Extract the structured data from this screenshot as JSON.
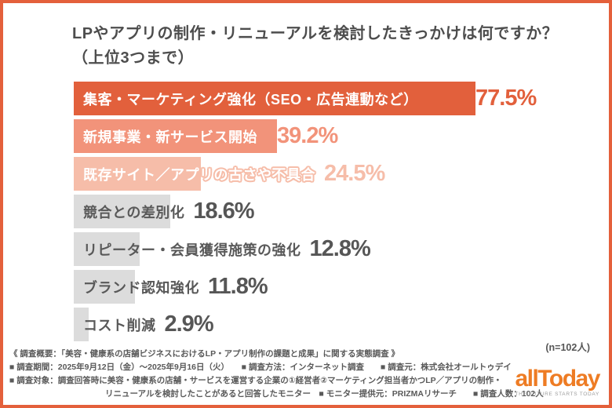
{
  "frame": {
    "border_color": "#E4603B",
    "background": "#FFFFFF"
  },
  "title": {
    "line1": "LPやアプリの制作・リニューアルを検討したきっかけは何ですか？",
    "line2": "（上位3つまで）",
    "color": "#4D4D4D"
  },
  "chart_data": {
    "type": "bar",
    "orientation": "horizontal",
    "title": "LPやアプリの制作・リニューアルを検討したきっかけは何ですか？（上位3つまで）",
    "categories": [
      "集客・マーケティング強化（SEO・広告連動など）",
      "新規事業・新サービス開始",
      "既存サイト／アプリの古さや不具合",
      "競合との差別化",
      "リピーター・会員獲得施策の強化",
      "ブランド認知強化",
      "コスト削減"
    ],
    "values": [
      77.5,
      39.2,
      24.5,
      18.6,
      12.8,
      11.8,
      2.9
    ],
    "value_labels": [
      "77.5%",
      "39.2%",
      "24.5%",
      "18.6%",
      "12.8%",
      "11.8%",
      "2.9%"
    ],
    "bar_colors": [
      "#E2603C",
      "#F2937A",
      "#F6BDA9",
      "#DCDCDC",
      "#DCDCDC",
      "#DCDCDC",
      "#DCDCDC"
    ],
    "label_colors": [
      "#FFFFFF",
      "#FFFFFF",
      "#FFFFFF",
      "#595959",
      "#595959",
      "#595959",
      "#595959"
    ],
    "value_label_colors": [
      "#E2603C",
      "#F2937A",
      "#F6BDA9",
      "#565656",
      "#565656",
      "#565656",
      "#565656"
    ],
    "xlim": [
      0,
      100
    ],
    "grid": false,
    "legend": false,
    "n_label": "(n=102人)"
  },
  "footer": {
    "lines": [
      "《 調査概要：「美容・健康系の店舗ビジネスにおけるLP・アプリ制作の課題と成果」に関する実態調査 》",
      "■ 調査期間：2025年9月12日（金）〜2025年9月16日（火）　　■ 調査方法：インターネット調査　　■ 調査元：株式会社オールトゥデイ",
      "■ 調査対象：調査回答時に美容・健康系の店舗・サービスを運営する企業の①経営者②マーケティング担当者かつLP／アプリの制作・",
      "リニューアルを検討したことがあると回答したモニター　■ モニター提供元：PRIZMAリサーチ　　■ 調査人数：102人"
    ]
  },
  "logo": {
    "text": "allToday",
    "tagline": "THE FUTURE STARTS TODAY",
    "color": "#EE7C24"
  }
}
